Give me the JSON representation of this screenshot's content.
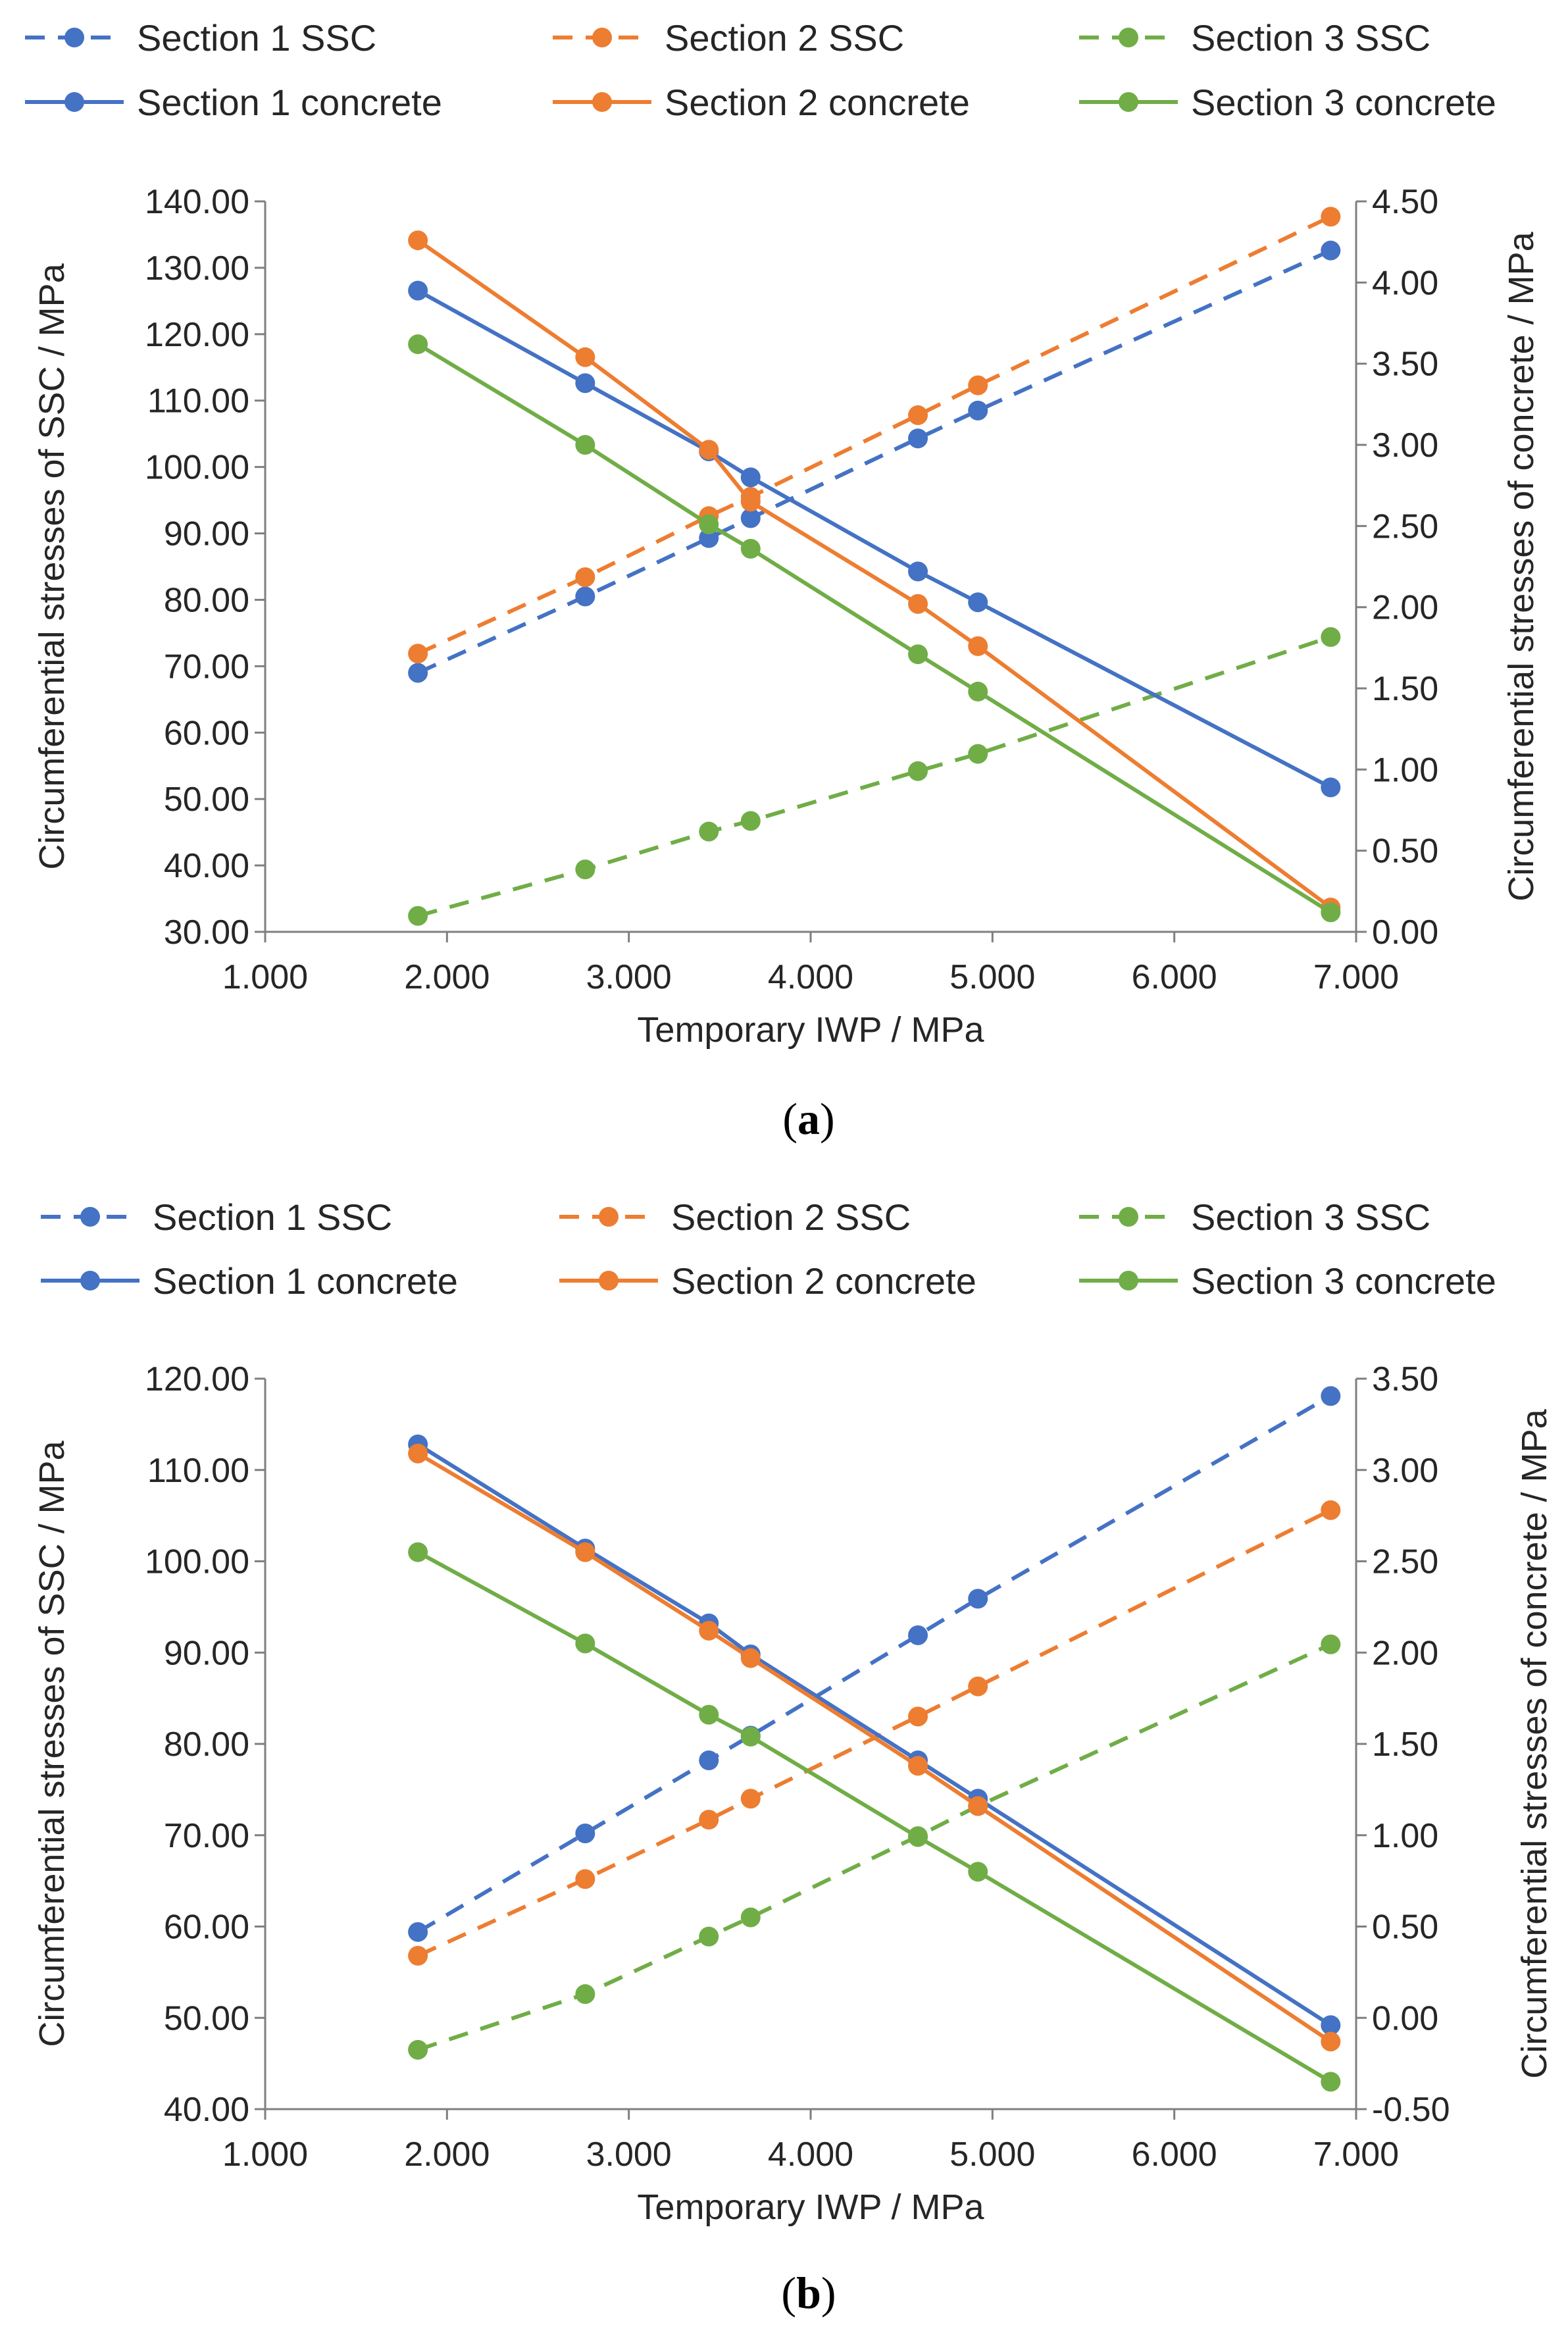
{
  "chart_data": [
    {
      "type": "line",
      "panel_label": "(a)",
      "panel_label_parts": {
        "open": "(",
        "letter": "a",
        "close": ")"
      },
      "xlabel": "Temporary IWP / MPa",
      "ylabel": "Circumferential stresses of SSC / MPa",
      "y2label": "Circumferential stresses of concrete / MPa",
      "xlim": [
        1.0,
        7.0
      ],
      "ylim": [
        30.0,
        140.0
      ],
      "y2lim": [
        0.0,
        4.5
      ],
      "x_ticks": [
        "1.000",
        "2.000",
        "3.000",
        "4.000",
        "5.000",
        "6.000",
        "7.000"
      ],
      "y_ticks": [
        "30.00",
        "40.00",
        "50.00",
        "60.00",
        "70.00",
        "80.00",
        "90.00",
        "100.00",
        "110.00",
        "120.00",
        "130.00",
        "140.00"
      ],
      "y2_ticks": [
        "0.00",
        "0.50",
        "1.00",
        "1.50",
        "2.00",
        "2.50",
        "3.00",
        "3.50",
        "4.00",
        "4.50"
      ],
      "legend_position": "top",
      "x": [
        1.84,
        2.76,
        3.44,
        3.67,
        4.59,
        4.92,
        6.86
      ],
      "series": [
        {
          "name": "Section 1 SSC",
          "axis": "left",
          "style": "dashed",
          "color": "#4472C4",
          "values": [
            69.0,
            80.5,
            89.3,
            92.3,
            104.3,
            108.5,
            132.6
          ]
        },
        {
          "name": "Section 2 SSC",
          "axis": "left",
          "style": "dashed",
          "color": "#ED7D31",
          "values": [
            71.9,
            83.4,
            92.6,
            95.5,
            107.8,
            112.3,
            137.7
          ]
        },
        {
          "name": "Section 3 SSC",
          "axis": "left",
          "style": "dashed",
          "color": "#70AD47",
          "values": [
            32.4,
            39.4,
            45.1,
            46.7,
            54.2,
            56.8,
            74.4
          ]
        },
        {
          "name": "Section 1 concrete",
          "axis": "right",
          "style": "solid",
          "color": "#4472C4",
          "values": [
            3.95,
            3.38,
            2.96,
            2.8,
            2.22,
            2.03,
            0.89
          ]
        },
        {
          "name": "Section 2 concrete",
          "axis": "right",
          "style": "solid",
          "color": "#ED7D31",
          "values": [
            4.26,
            3.54,
            2.97,
            2.65,
            2.02,
            1.76,
            0.15
          ]
        },
        {
          "name": "Section 3 concrete",
          "axis": "right",
          "style": "solid",
          "color": "#70AD47",
          "values": [
            3.62,
            3.0,
            2.51,
            2.36,
            1.71,
            1.48,
            0.12
          ]
        }
      ]
    },
    {
      "type": "line",
      "panel_label": "(b)",
      "panel_label_parts": {
        "open": "(",
        "letter": "b",
        "close": ")"
      },
      "xlabel": "Temporary IWP / MPa",
      "ylabel": "Circumferential stresses of SSC / MPa",
      "y2label": "Circumferential stresses of concrete / MPa",
      "xlim": [
        1.0,
        7.0
      ],
      "ylim": [
        40.0,
        120.0
      ],
      "y2lim": [
        -0.5,
        3.5
      ],
      "x_ticks": [
        "1.000",
        "2.000",
        "3.000",
        "4.000",
        "5.000",
        "6.000",
        "7.000"
      ],
      "y_ticks": [
        "40.00",
        "50.00",
        "60.00",
        "70.00",
        "80.00",
        "90.00",
        "100.00",
        "110.00",
        "120.00"
      ],
      "y2_ticks": [
        "-0.50",
        "0.00",
        "0.50",
        "1.00",
        "1.50",
        "2.00",
        "2.50",
        "3.00",
        "3.50"
      ],
      "legend_position": "top",
      "x": [
        1.84,
        2.76,
        3.44,
        3.67,
        4.59,
        4.92,
        6.86
      ],
      "series": [
        {
          "name": "Section 1 SSC",
          "axis": "left",
          "style": "dashed",
          "color": "#4472C4",
          "values": [
            59.4,
            70.2,
            78.2,
            80.9,
            91.9,
            95.9,
            118.1
          ]
        },
        {
          "name": "Section 2 SSC",
          "axis": "left",
          "style": "dashed",
          "color": "#ED7D31",
          "values": [
            56.8,
            65.2,
            71.7,
            74.0,
            83.0,
            86.3,
            105.6
          ]
        },
        {
          "name": "Section 3 SSC",
          "axis": "left",
          "style": "dashed",
          "color": "#70AD47",
          "values": [
            46.5,
            52.6,
            58.9,
            61.0,
            69.9,
            73.2,
            90.9
          ]
        },
        {
          "name": "Section 1 concrete",
          "axis": "right",
          "style": "solid",
          "color": "#4472C4",
          "values": [
            3.14,
            2.57,
            2.16,
            1.99,
            1.41,
            1.2,
            -0.04
          ]
        },
        {
          "name": "Section 2 concrete",
          "axis": "right",
          "style": "solid",
          "color": "#ED7D31",
          "values": [
            3.09,
            2.55,
            2.12,
            1.97,
            1.38,
            1.16,
            -0.13
          ]
        },
        {
          "name": "Section 3 concrete",
          "axis": "right",
          "style": "solid",
          "color": "#70AD47",
          "values": [
            2.55,
            2.05,
            1.66,
            1.54,
            0.99,
            0.8,
            -0.35
          ]
        }
      ]
    }
  ]
}
